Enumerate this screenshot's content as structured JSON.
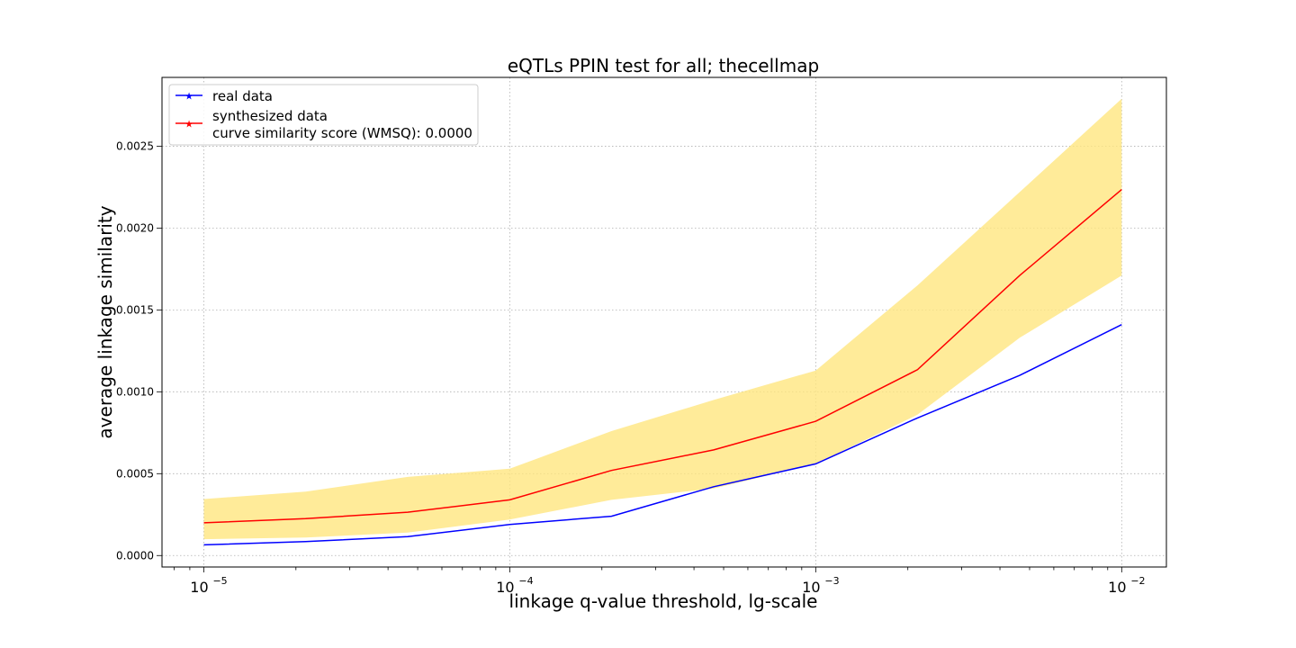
{
  "chart_data": {
    "type": "line",
    "title": "eQTLs PPIN test for all; thecellmap",
    "xlabel": "linkage q-value threshold, lg-scale",
    "ylabel": "average linkage similarity",
    "xscale": "log",
    "xlim": [
      7.3e-06,
      0.014
    ],
    "ylim": [
      -7e-05,
      0.00292
    ],
    "grid": true,
    "legend_position": "top-left",
    "x": [
      1e-05,
      2.15e-05,
      4.64e-05,
      0.0001,
      0.000215,
      0.000464,
      0.001,
      0.00215,
      0.00464,
      0.01
    ],
    "xticks": [
      {
        "value": 1e-05,
        "base": "10",
        "exp": "−5"
      },
      {
        "value": 0.0001,
        "base": "10",
        "exp": "−4"
      },
      {
        "value": 0.001,
        "base": "10",
        "exp": "−3"
      },
      {
        "value": 0.01,
        "base": "10",
        "exp": "−2"
      }
    ],
    "yticks": [
      {
        "value": 0.0,
        "label": "0.0000"
      },
      {
        "value": 0.0005,
        "label": "0.0005"
      },
      {
        "value": 0.001,
        "label": "0.0010"
      },
      {
        "value": 0.0015,
        "label": "0.0015"
      },
      {
        "value": 0.002,
        "label": "0.0020"
      },
      {
        "value": 0.0025,
        "label": "0.0025"
      }
    ],
    "series": [
      {
        "name": "real data",
        "color": "#0000ff",
        "values": [
          6.5e-05,
          8.5e-05,
          0.000115,
          0.00019,
          0.00024,
          0.00042,
          0.00056,
          0.00084,
          0.0011,
          0.00141
        ]
      },
      {
        "name": "synthesized data",
        "legend_note": "curve similarity score (WMSQ): 0.0000",
        "color": "#ff0000",
        "values": [
          0.0002,
          0.000225,
          0.000265,
          0.00034,
          0.00052,
          0.000645,
          0.00082,
          0.001135,
          0.00171,
          0.002235
        ],
        "band_lower": [
          0.0001,
          0.00011,
          0.00014,
          0.00022,
          0.00034,
          0.00041,
          0.00056,
          0.00086,
          0.00133,
          0.00171
        ],
        "band_upper": [
          0.000345,
          0.00039,
          0.00048,
          0.00053,
          0.00076,
          0.00095,
          0.00113,
          0.00165,
          0.00222,
          0.00279
        ],
        "band_color": "#ffe680"
      }
    ]
  }
}
